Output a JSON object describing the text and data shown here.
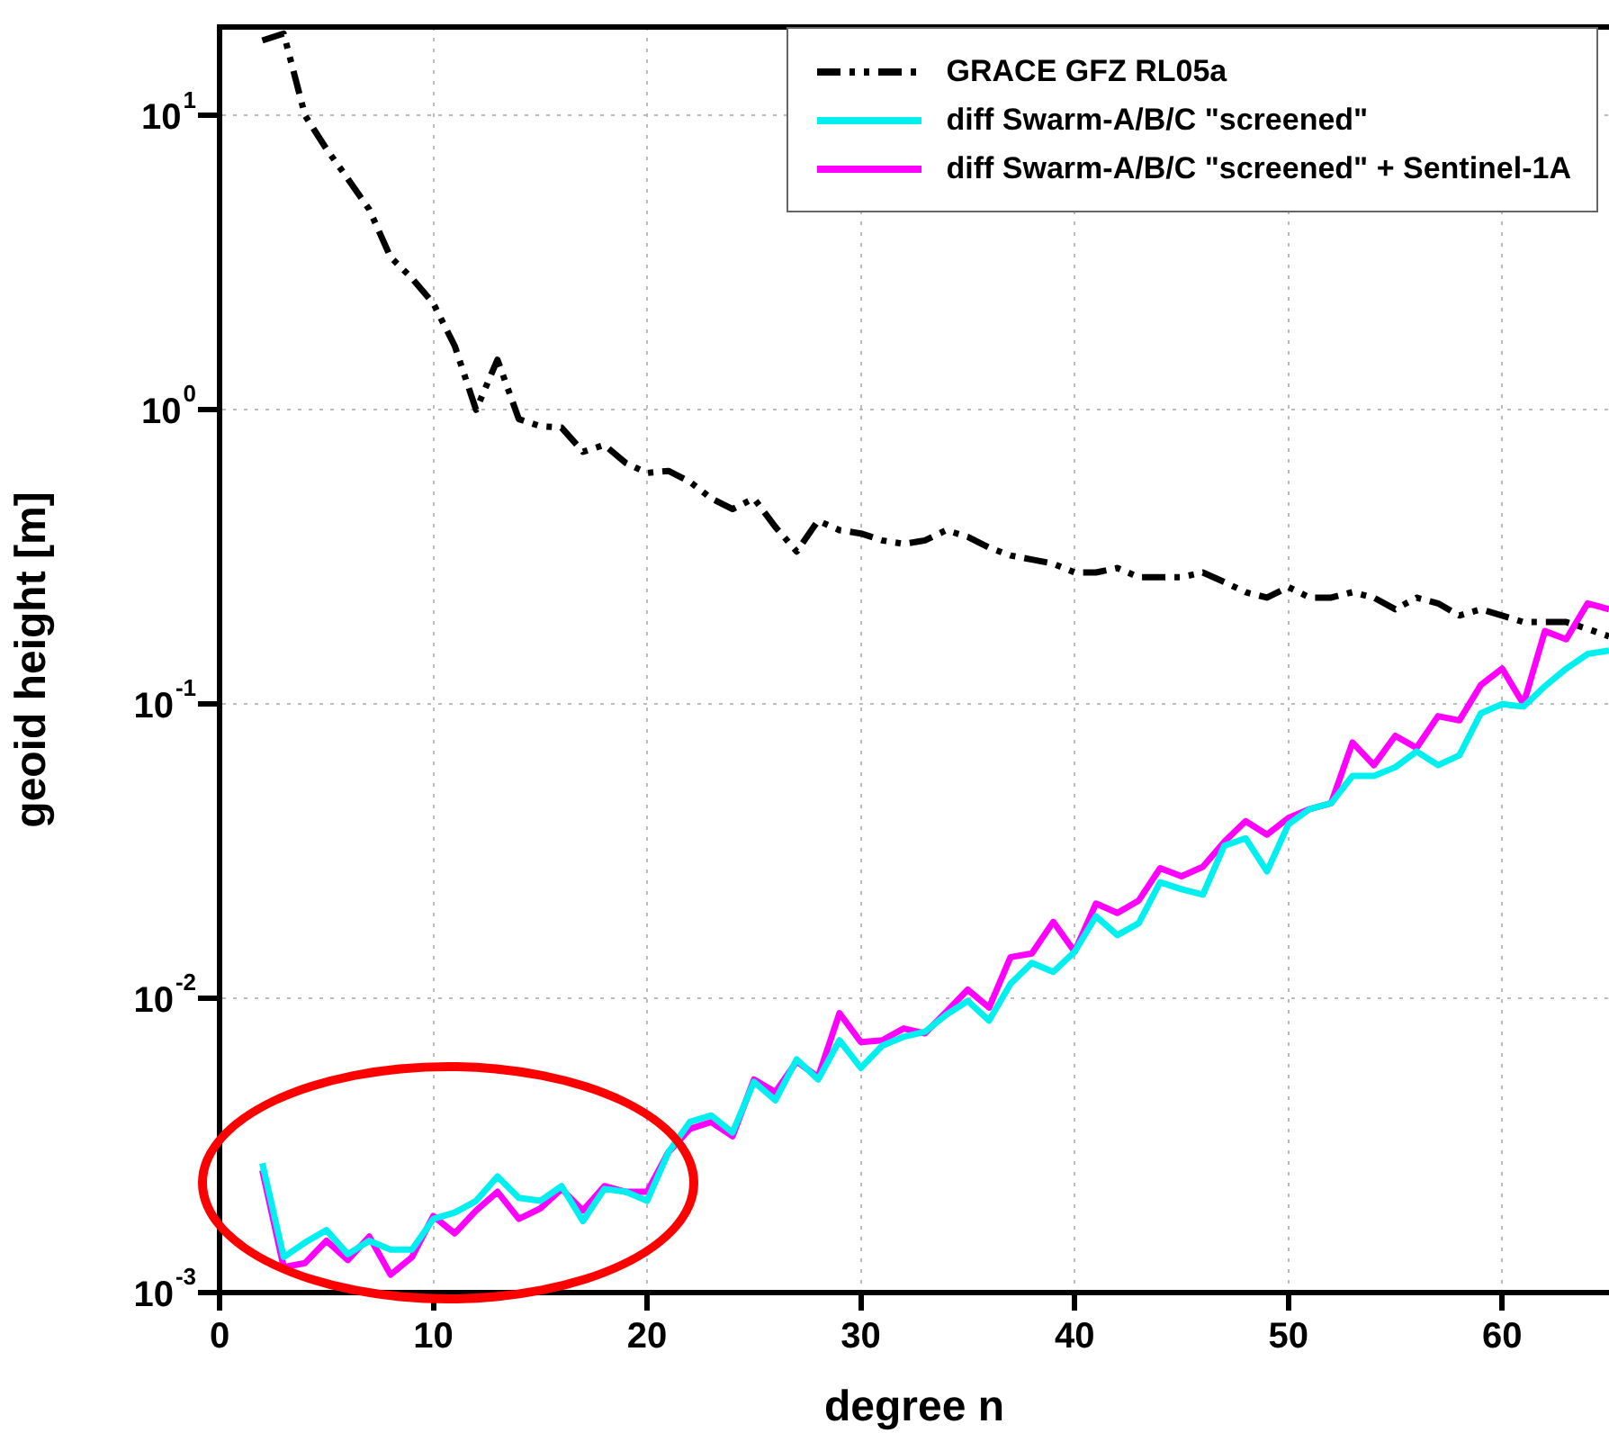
{
  "chart_data": {
    "type": "line",
    "xlabel": "degree n",
    "ylabel": "geoid height [m]",
    "log": "y",
    "grid": true,
    "legend": "top right",
    "marker": "none",
    "xlim": [
      0,
      65
    ],
    "xticks": [
      0,
      10,
      20,
      30,
      40,
      50,
      60
    ],
    "ylim": [
      0.001,
      20
    ],
    "yticks": [
      {
        "value": 0.001,
        "label": "10$^{-3}$"
      },
      {
        "value": 0.01,
        "label": "10$^{-2}$"
      },
      {
        "value": 0.1,
        "label": "10$^{-1}$"
      },
      {
        "value": 1,
        "label": "10$^{0}$"
      },
      {
        "value": 10,
        "label": "10$^{1}$"
      }
    ],
    "x": [
      2,
      3,
      4,
      5,
      6,
      7,
      8,
      9,
      10,
      11,
      12,
      13,
      14,
      15,
      16,
      17,
      18,
      19,
      20,
      21,
      22,
      23,
      24,
      25,
      26,
      27,
      28,
      29,
      30,
      31,
      32,
      33,
      34,
      35,
      36,
      37,
      38,
      39,
      40,
      41,
      42,
      43,
      44,
      45,
      46,
      47,
      48,
      49,
      50,
      51,
      52,
      53,
      54,
      55,
      56,
      57,
      58,
      59,
      60,
      61,
      62,
      63,
      64,
      65
    ],
    "series": [
      {
        "name": "GRACE GFZ RL05a",
        "color": "#000000",
        "line_style": "dashed",
        "values": [
          18,
          19,
          10,
          7.7,
          6.1,
          4.8,
          3.3,
          2.8,
          2.3,
          1.65,
          1.0,
          1.48,
          0.93,
          0.88,
          0.87,
          0.72,
          0.76,
          0.66,
          0.61,
          0.62,
          0.57,
          0.5,
          0.46,
          0.5,
          0.4,
          0.33,
          0.42,
          0.39,
          0.38,
          0.36,
          0.35,
          0.36,
          0.39,
          0.37,
          0.34,
          0.32,
          0.31,
          0.3,
          0.28,
          0.28,
          0.29,
          0.27,
          0.27,
          0.27,
          0.28,
          0.26,
          0.24,
          0.23,
          0.25,
          0.23,
          0.23,
          0.24,
          0.23,
          0.21,
          0.23,
          0.22,
          0.2,
          0.21,
          0.2,
          0.19,
          0.19,
          0.19,
          0.18,
          0.17
        ]
      },
      {
        "name": "diff Swarm-A/B/C \"screened\"",
        "color": "#00f0f0",
        "line_style": "solid",
        "values": [
          0.00275,
          0.00132,
          0.00148,
          0.00163,
          0.00135,
          0.0015,
          0.0014,
          0.0014,
          0.00178,
          0.00187,
          0.00205,
          0.00248,
          0.0021,
          0.00205,
          0.0023,
          0.00175,
          0.00225,
          0.0022,
          0.00205,
          0.003,
          0.0038,
          0.004,
          0.0035,
          0.0052,
          0.0045,
          0.0062,
          0.0053,
          0.0072,
          0.0058,
          0.0069,
          0.0074,
          0.0077,
          0.0088,
          0.0098,
          0.0084,
          0.0112,
          0.0132,
          0.0123,
          0.0144,
          0.019,
          0.0164,
          0.018,
          0.0248,
          0.0235,
          0.0225,
          0.033,
          0.035,
          0.027,
          0.039,
          0.044,
          0.046,
          0.057,
          0.057,
          0.061,
          0.069,
          0.062,
          0.067,
          0.093,
          0.1,
          0.098,
          0.115,
          0.132,
          0.148,
          0.152
        ]
      },
      {
        "name": "diff Swarm-A/B/C \"screened\" + Sentinel-1A",
        "color": "#ff00ff",
        "line_style": "solid",
        "values": [
          0.0026,
          0.00122,
          0.00126,
          0.0015,
          0.00129,
          0.00155,
          0.00115,
          0.00132,
          0.00182,
          0.00159,
          0.0019,
          0.0022,
          0.00178,
          0.00193,
          0.00225,
          0.0019,
          0.0023,
          0.0022,
          0.0022,
          0.003,
          0.0036,
          0.0038,
          0.0034,
          0.0053,
          0.0048,
          0.0061,
          0.0054,
          0.0089,
          0.0071,
          0.0072,
          0.0079,
          0.0076,
          0.009,
          0.0107,
          0.0093,
          0.0138,
          0.0142,
          0.0182,
          0.0144,
          0.021,
          0.0195,
          0.0215,
          0.0277,
          0.026,
          0.028,
          0.034,
          0.04,
          0.036,
          0.041,
          0.044,
          0.046,
          0.074,
          0.062,
          0.078,
          0.071,
          0.091,
          0.088,
          0.116,
          0.132,
          0.1,
          0.177,
          0.166,
          0.22,
          0.21
        ]
      }
    ]
  }
}
